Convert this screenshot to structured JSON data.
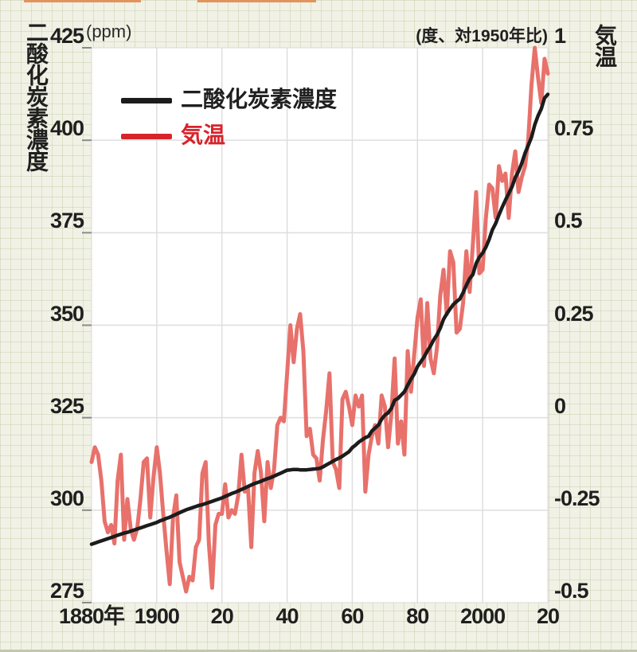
{
  "chart": {
    "left_axis": {
      "title": "二酸化炭素濃度",
      "unit": "(ppm)",
      "tick_labels": [
        "425",
        "400",
        "375",
        "350",
        "325",
        "300",
        "275"
      ]
    },
    "right_axis": {
      "title": "気温",
      "unit": "(度、対1950年比)",
      "tick_labels": [
        "1",
        "0.75",
        "0.5",
        "0.25",
        "0",
        "-0.25",
        "-0.5"
      ]
    },
    "x_axis": {
      "tick_labels": [
        "1880年",
        "1900",
        "20",
        "40",
        "60",
        "80",
        "2000",
        "20"
      ],
      "tick_years": [
        1880,
        1900,
        1920,
        1940,
        1960,
        1980,
        2000,
        2020
      ]
    },
    "legend": [
      {
        "label": "二酸化炭素濃度",
        "color": "#1c1c1c"
      },
      {
        "label": "気温",
        "color": "#d7242c"
      }
    ]
  },
  "chart_data": {
    "type": "line",
    "title": "",
    "x": [
      1880,
      1881,
      1882,
      1883,
      1884,
      1885,
      1886,
      1887,
      1888,
      1889,
      1890,
      1891,
      1892,
      1893,
      1894,
      1895,
      1896,
      1897,
      1898,
      1899,
      1900,
      1901,
      1902,
      1903,
      1904,
      1905,
      1906,
      1907,
      1908,
      1909,
      1910,
      1911,
      1912,
      1913,
      1914,
      1915,
      1916,
      1917,
      1918,
      1919,
      1920,
      1921,
      1922,
      1923,
      1924,
      1925,
      1926,
      1927,
      1928,
      1929,
      1930,
      1931,
      1932,
      1933,
      1934,
      1935,
      1936,
      1937,
      1938,
      1939,
      1940,
      1941,
      1942,
      1943,
      1944,
      1945,
      1946,
      1947,
      1948,
      1949,
      1950,
      1951,
      1952,
      1953,
      1954,
      1955,
      1956,
      1957,
      1958,
      1959,
      1960,
      1961,
      1962,
      1963,
      1964,
      1965,
      1966,
      1967,
      1968,
      1969,
      1970,
      1971,
      1972,
      1973,
      1974,
      1975,
      1976,
      1977,
      1978,
      1979,
      1980,
      1981,
      1982,
      1983,
      1984,
      1985,
      1986,
      1987,
      1988,
      1989,
      1990,
      1991,
      1992,
      1993,
      1994,
      1995,
      1996,
      1997,
      1998,
      1999,
      2000,
      2001,
      2002,
      2003,
      2004,
      2005,
      2006,
      2007,
      2008,
      2009,
      2010,
      2011,
      2012,
      2013,
      2014,
      2015,
      2016,
      2017,
      2018,
      2019,
      2020
    ],
    "series": [
      {
        "name": "二酸化炭素濃度",
        "axis": "left",
        "unit": "ppm",
        "color": "#1c1c1c",
        "values": [
          290.8,
          291.1,
          291.4,
          291.7,
          292.0,
          292.3,
          292.6,
          292.9,
          293.2,
          293.5,
          293.8,
          294.0,
          294.3,
          294.6,
          294.9,
          295.2,
          295.5,
          295.8,
          296.1,
          296.4,
          296.7,
          297.1,
          297.4,
          297.8,
          298.1,
          298.5,
          298.9,
          299.3,
          299.7,
          300.1,
          300.4,
          300.7,
          301.0,
          301.3,
          301.5,
          301.8,
          302.1,
          302.4,
          302.7,
          303.0,
          303.3,
          303.7,
          304.1,
          304.5,
          304.8,
          305.2,
          305.6,
          306.0,
          306.4,
          306.8,
          307.2,
          307.5,
          307.8,
          308.2,
          308.5,
          308.8,
          309.2,
          309.6,
          310.0,
          310.4,
          310.8,
          310.9,
          311.0,
          311.0,
          310.9,
          310.9,
          310.9,
          311.0,
          311.1,
          311.2,
          311.3,
          311.7,
          312.2,
          312.7,
          313.2,
          313.7,
          314.1,
          314.6,
          315.2,
          315.8,
          316.9,
          317.6,
          318.4,
          319.0,
          319.6,
          320.0,
          321.4,
          322.2,
          323.0,
          324.6,
          325.7,
          326.3,
          327.5,
          329.7,
          330.2,
          331.1,
          332.0,
          333.8,
          335.4,
          336.8,
          338.8,
          340.1,
          341.4,
          343.0,
          344.4,
          346.1,
          347.4,
          349.2,
          351.6,
          353.1,
          354.4,
          355.6,
          356.4,
          357.1,
          358.8,
          360.8,
          362.6,
          363.7,
          366.7,
          368.4,
          369.5,
          371.1,
          373.2,
          375.8,
          377.5,
          379.8,
          381.9,
          383.8,
          385.6,
          387.4,
          389.9,
          391.6,
          393.8,
          396.5,
          398.6,
          400.8,
          404.2,
          406.6,
          408.5,
          411.4,
          412.4
        ]
      },
      {
        "name": "気温",
        "axis": "right",
        "unit": "度（対1950年比）",
        "color": "#e8716b",
        "values": [
          -0.12,
          -0.08,
          -0.1,
          -0.17,
          -0.28,
          -0.31,
          -0.29,
          -0.34,
          -0.17,
          -0.1,
          -0.33,
          -0.22,
          -0.3,
          -0.33,
          -0.3,
          -0.22,
          -0.12,
          -0.11,
          -0.27,
          -0.16,
          -0.08,
          -0.15,
          -0.26,
          -0.36,
          -0.45,
          -0.27,
          -0.21,
          -0.39,
          -0.43,
          -0.47,
          -0.43,
          -0.44,
          -0.35,
          -0.33,
          -0.15,
          -0.12,
          -0.34,
          -0.46,
          -0.29,
          -0.26,
          -0.26,
          -0.18,
          -0.27,
          -0.25,
          -0.26,
          -0.21,
          -0.1,
          -0.2,
          -0.19,
          -0.35,
          -0.15,
          -0.09,
          -0.15,
          -0.28,
          -0.12,
          -0.19,
          -0.14,
          -0.02,
          0.0,
          -0.01,
          0.12,
          0.25,
          0.15,
          0.24,
          0.28,
          0.18,
          -0.05,
          -0.03,
          -0.1,
          -0.11,
          -0.17,
          -0.06,
          0.02,
          0.12,
          -0.12,
          -0.14,
          -0.19,
          0.05,
          0.07,
          0.03,
          -0.02,
          0.06,
          0.03,
          0.06,
          -0.2,
          -0.1,
          -0.05,
          -0.02,
          -0.07,
          0.06,
          0.03,
          -0.08,
          0.01,
          0.16,
          -0.07,
          -0.01,
          -0.1,
          0.18,
          0.07,
          0.17,
          0.27,
          0.32,
          0.14,
          0.31,
          0.16,
          0.12,
          0.19,
          0.33,
          0.4,
          0.28,
          0.45,
          0.42,
          0.23,
          0.24,
          0.31,
          0.45,
          0.34,
          0.47,
          0.61,
          0.39,
          0.4,
          0.54,
          0.63,
          0.62,
          0.54,
          0.68,
          0.64,
          0.66,
          0.54,
          0.66,
          0.72,
          0.61,
          0.65,
          0.68,
          0.75,
          0.9,
          1.0,
          0.92,
          0.85,
          0.97,
          0.93
        ]
      }
    ],
    "xlim": [
      1880,
      2020
    ],
    "left_ylim": [
      275,
      425
    ],
    "right_ylim": [
      -0.5,
      1
    ],
    "grid": true,
    "legend_position": "top-left-inside"
  }
}
